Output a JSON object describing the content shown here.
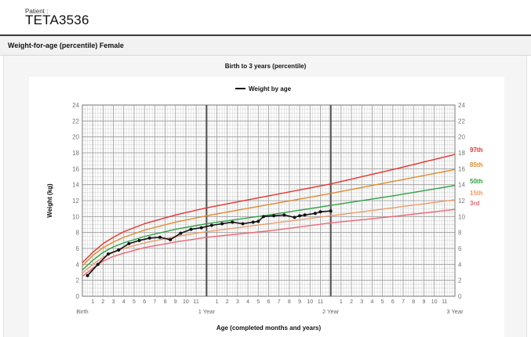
{
  "patient": {
    "label": "Patient :",
    "id": "TETA3536"
  },
  "section": {
    "title": "Weight-for-age (percentile) Female"
  },
  "chart_data": {
    "type": "line",
    "subtitle": "Birth to 3 years (percentile)",
    "legend": "Weight by age",
    "legend_position": "top-center",
    "xlabel": "Age (completed months and years)",
    "ylabel": "Weight (kg)",
    "xlim": [
      0,
      36
    ],
    "ylim": [
      0,
      24
    ],
    "y_ticks": [
      "0",
      "2",
      "4",
      "6",
      "8",
      "10",
      "12",
      "14",
      "16",
      "18",
      "20",
      "22",
      "24"
    ],
    "x_tick_labels": [
      "1",
      "2",
      "3",
      "4",
      "5",
      "6",
      "7",
      "8",
      "9",
      "10",
      "11",
      "1",
      "2",
      "3",
      "4",
      "5",
      "6",
      "7",
      "8",
      "9",
      "10",
      "11",
      "1",
      "2",
      "3",
      "4",
      "5",
      "6",
      "7",
      "8",
      "9",
      "10",
      "11"
    ],
    "x_major_labels": [
      "Birth",
      "1 Year",
      "2 Year",
      "3 Year"
    ],
    "grid": true,
    "series": [
      {
        "name": "97th",
        "color": "#e8332e",
        "x": [
          0,
          1,
          2,
          3,
          4,
          6,
          9,
          12,
          18,
          24,
          30,
          36
        ],
        "values": [
          4.2,
          5.5,
          6.6,
          7.4,
          8.1,
          9.1,
          10.2,
          11.1,
          12.6,
          14.1,
          15.9,
          17.8
        ]
      },
      {
        "name": "85th",
        "color": "#e08a2c",
        "x": [
          0,
          1,
          2,
          3,
          4,
          6,
          9,
          12,
          18,
          24,
          30,
          36
        ],
        "values": [
          3.8,
          5.1,
          6.1,
          6.8,
          7.4,
          8.3,
          9.3,
          10.1,
          11.5,
          12.9,
          14.4,
          15.9
        ]
      },
      {
        "name": "50th",
        "color": "#2ea043",
        "x": [
          0,
          1,
          2,
          3,
          4,
          6,
          9,
          12,
          18,
          24,
          30,
          36
        ],
        "values": [
          3.3,
          4.5,
          5.5,
          6.2,
          6.7,
          7.5,
          8.4,
          9.1,
          10.2,
          11.4,
          12.6,
          13.9
        ]
      },
      {
        "name": "15th",
        "color": "#ec9a6a",
        "x": [
          0,
          1,
          2,
          3,
          4,
          6,
          9,
          12,
          18,
          24,
          30,
          36
        ],
        "values": [
          2.9,
          4.0,
          4.9,
          5.5,
          6.0,
          6.7,
          7.5,
          8.1,
          9.1,
          10.1,
          11.1,
          12.1
        ]
      },
      {
        "name": "3rd",
        "color": "#ee6677",
        "x": [
          0,
          1,
          2,
          3,
          4,
          6,
          9,
          12,
          18,
          24,
          30,
          36
        ],
        "values": [
          2.5,
          3.5,
          4.4,
          5.0,
          5.4,
          6.1,
          6.8,
          7.4,
          8.2,
          9.2,
          10.0,
          10.9
        ]
      },
      {
        "name": "Weight by age",
        "color": "#111111",
        "x": [
          0.5,
          1.5,
          2.5,
          3.5,
          4.5,
          5.5,
          6.5,
          7.5,
          8.5,
          9.5,
          10.5,
          11.5,
          12.5,
          13.5,
          14.5,
          15.5,
          16.5,
          17,
          17.5,
          18.5,
          19.5,
          20.5,
          21,
          21.5,
          22.5,
          23,
          24
        ],
        "values": [
          2.6,
          4.0,
          5.3,
          5.8,
          6.6,
          7.0,
          7.3,
          7.4,
          7.1,
          7.9,
          8.4,
          8.6,
          8.9,
          9.1,
          9.3,
          9.1,
          9.3,
          9.4,
          10.0,
          10.1,
          10.2,
          9.9,
          10.1,
          10.2,
          10.4,
          10.6,
          10.7
        ]
      }
    ]
  }
}
